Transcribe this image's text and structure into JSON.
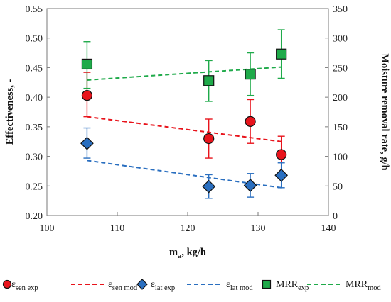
{
  "chart_data": {
    "type": "scatter",
    "x_axis": {
      "label": "m",
      "label_sub": "a",
      "label_rest": ", kg/h",
      "range": [
        100,
        140
      ],
      "ticks": [
        100,
        110,
        120,
        130,
        140
      ]
    },
    "y_left": {
      "label": "Effectiveness, -",
      "range": [
        0.2,
        0.55
      ],
      "ticks": [
        "0.20",
        "0.25",
        "0.30",
        "0.35",
        "0.40",
        "0.45",
        "0.50",
        "0.55"
      ]
    },
    "y_right": {
      "label": "Moisture removal rate, g/h",
      "range": [
        0,
        350
      ],
      "ticks": [
        0,
        50,
        100,
        150,
        200,
        250,
        300,
        350
      ]
    },
    "grid": false,
    "legend_position": "bottom",
    "series": [
      {
        "key": "sen_exp",
        "kind": "marker",
        "marker": "circle",
        "color": "#e8141c",
        "edge": "#111111",
        "axis": "left",
        "legend": {
          "main": "ε",
          "sub": "sen exp",
          "sub_style": "sub"
        },
        "points": [
          {
            "x": 105.7,
            "y": 0.403,
            "lo": 0.367,
            "hi": 0.442
          },
          {
            "x": 123.0,
            "y": 0.33,
            "lo": 0.297,
            "hi": 0.363
          },
          {
            "x": 128.9,
            "y": 0.359,
            "lo": 0.322,
            "hi": 0.396
          },
          {
            "x": 133.3,
            "y": 0.303,
            "lo": 0.273,
            "hi": 0.334
          }
        ]
      },
      {
        "key": "sen_mod",
        "kind": "line",
        "color": "#e8141c",
        "axis": "left",
        "legend": {
          "main": "ε",
          "sub": "sen mod",
          "sub_style": "sub"
        },
        "line": [
          {
            "x": 105.7,
            "y": 0.367
          },
          {
            "x": 133.3,
            "y": 0.325
          }
        ]
      },
      {
        "key": "lat_exp",
        "kind": "marker",
        "marker": "diamond",
        "color": "#2a6fc0",
        "edge": "#111111",
        "axis": "left",
        "legend": {
          "main": "ε",
          "sub": "lat exp",
          "sub_style": "sub"
        },
        "points": [
          {
            "x": 105.7,
            "y": 0.322,
            "lo": 0.297,
            "hi": 0.348
          },
          {
            "x": 123.0,
            "y": 0.249,
            "lo": 0.229,
            "hi": 0.269
          },
          {
            "x": 128.9,
            "y": 0.251,
            "lo": 0.231,
            "hi": 0.271
          },
          {
            "x": 133.3,
            "y": 0.268,
            "lo": 0.247,
            "hi": 0.289
          }
        ]
      },
      {
        "key": "lat_mod",
        "kind": "line",
        "color": "#2a6fc0",
        "axis": "left",
        "legend": {
          "main": "ε",
          "sub": "lat mod",
          "sub_style": "sub"
        },
        "line": [
          {
            "x": 105.7,
            "y": 0.293
          },
          {
            "x": 133.3,
            "y": 0.247
          }
        ]
      },
      {
        "key": "mrr_exp",
        "kind": "marker",
        "marker": "square",
        "color": "#1faa4a",
        "edge": "#111111",
        "axis": "right",
        "legend": {
          "main": "MRR",
          "sub": "exp",
          "sub_style": "sub"
        },
        "points": [
          {
            "x": 105.7,
            "y": 256,
            "lo": 215,
            "hi": 294
          },
          {
            "x": 123.0,
            "y": 228,
            "lo": 193,
            "hi": 262
          },
          {
            "x": 128.9,
            "y": 239,
            "lo": 203,
            "hi": 275
          },
          {
            "x": 133.3,
            "y": 273,
            "lo": 232,
            "hi": 314
          }
        ]
      },
      {
        "key": "mrr_mod",
        "kind": "line",
        "color": "#1faa4a",
        "axis": "right",
        "legend": {
          "main": "MRR",
          "sub": "mod",
          "sub_style": "sub"
        },
        "line": [
          {
            "x": 105.7,
            "y": 229
          },
          {
            "x": 133.3,
            "y": 251
          }
        ]
      }
    ]
  }
}
